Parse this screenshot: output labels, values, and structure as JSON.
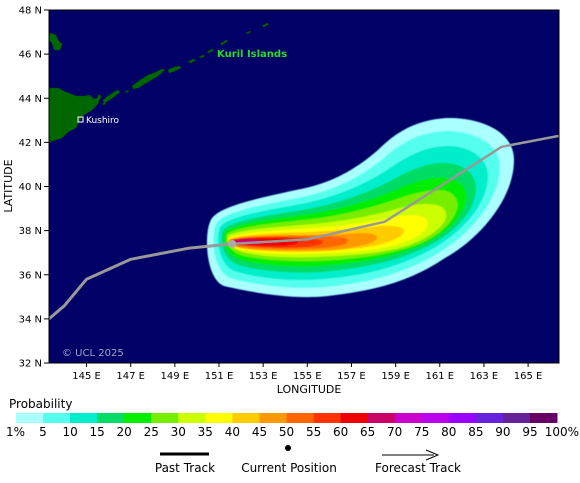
{
  "map": {
    "xlabel": "LONGITUDE",
    "ylabel": "LATITUDE",
    "lon_ticks": [
      "145 E",
      "147 E",
      "149 E",
      "151 E",
      "153 E",
      "155 E",
      "157 E",
      "159 E",
      "161 E",
      "163 E",
      "165 E"
    ],
    "lat_ticks": [
      "48 N",
      "46 N",
      "44 N",
      "42 N",
      "40 N",
      "38 N",
      "36 N",
      "34 N",
      "32 N"
    ],
    "lon_range": [
      143.3,
      166.4
    ],
    "lat_range": [
      32,
      48
    ],
    "ocean_color": "#000066",
    "land_color": "#006600",
    "places": {
      "kushiro": "Kushiro",
      "kuril": "Kuril Islands"
    },
    "copyright": "© UCL 2025"
  },
  "chart_data": {
    "type": "map",
    "track_color": "#999999",
    "current_position": {
      "lon": 151.6,
      "lat": 37.4
    },
    "past_track": [
      {
        "lon": 143.3,
        "lat": 34.0
      },
      {
        "lon": 144.0,
        "lat": 34.6
      },
      {
        "lon": 145.0,
        "lat": 35.8
      },
      {
        "lon": 147.0,
        "lat": 36.7
      },
      {
        "lon": 149.6,
        "lat": 37.2
      },
      {
        "lon": 151.6,
        "lat": 37.4
      }
    ],
    "forecast_track": [
      {
        "lon": 151.6,
        "lat": 37.4
      },
      {
        "lon": 155.0,
        "lat": 37.6
      },
      {
        "lon": 158.5,
        "lat": 38.4
      },
      {
        "lon": 161.0,
        "lat": 40.0
      },
      {
        "lon": 163.8,
        "lat": 41.8
      },
      {
        "lon": 166.4,
        "lat": 42.3
      }
    ]
  },
  "legend": {
    "title": "Probability",
    "labels": [
      "1%",
      "5",
      "10",
      "15",
      "20",
      "25",
      "30",
      "35",
      "40",
      "45",
      "50",
      "55",
      "60",
      "65",
      "70",
      "75",
      "80",
      "85",
      "90",
      "95",
      "100%"
    ],
    "colors": [
      "#aaffff",
      "#55ffee",
      "#00eecc",
      "#00dd66",
      "#00ee00",
      "#77ee00",
      "#ccff00",
      "#ffff00",
      "#ffcc00",
      "#ff9900",
      "#ff6600",
      "#ff3300",
      "#ee0000",
      "#cc0066",
      "#cc00cc",
      "#bb00ee",
      "#9900ff",
      "#6622dd",
      "#662299",
      "#660066"
    ],
    "past_track": "Past Track",
    "current_position": "Current Position",
    "forecast_track": "Forecast Track"
  }
}
